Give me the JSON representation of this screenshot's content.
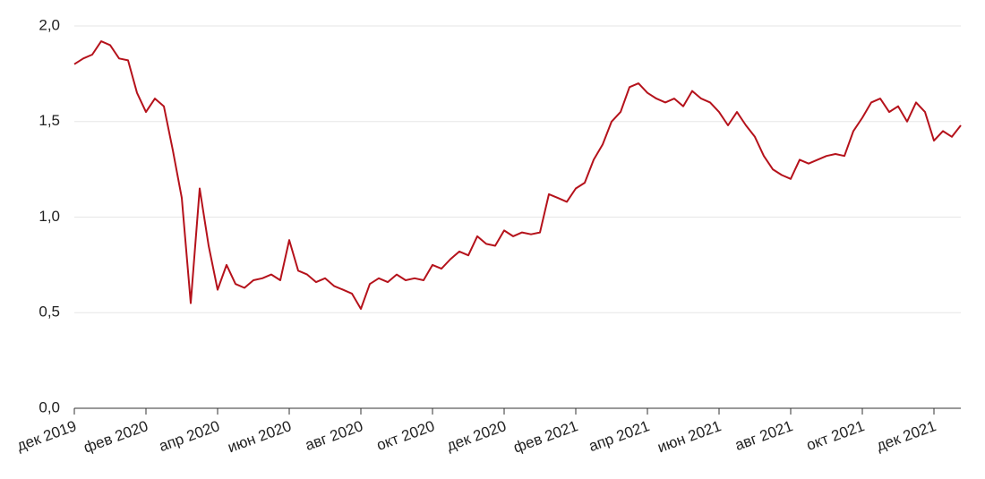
{
  "chart_data": {
    "type": "line",
    "categories": [
      "дек 2019",
      null,
      null,
      null,
      null,
      null,
      null,
      null,
      "фев 2020",
      null,
      null,
      null,
      null,
      null,
      null,
      null,
      "апр 2020",
      null,
      null,
      null,
      null,
      null,
      null,
      null,
      "июн 2020",
      null,
      null,
      null,
      null,
      null,
      null,
      null,
      "авг 2020",
      null,
      null,
      null,
      null,
      null,
      null,
      null,
      "окт 2020",
      null,
      null,
      null,
      null,
      null,
      null,
      null,
      "дек 2020",
      null,
      null,
      null,
      null,
      null,
      null,
      null,
      "фев 2021",
      null,
      null,
      null,
      null,
      null,
      null,
      null,
      "апр 2021",
      null,
      null,
      null,
      null,
      null,
      null,
      null,
      "июн 2021",
      null,
      null,
      null,
      null,
      null,
      null,
      null,
      "авг 2021",
      null,
      null,
      null,
      null,
      null,
      null,
      null,
      "окт 2021",
      null,
      null,
      null,
      null,
      null,
      null,
      null,
      "дек 2021",
      null,
      null,
      null
    ],
    "series": [
      {
        "color": "#b5121b",
        "values": [
          1.8,
          1.83,
          1.85,
          1.92,
          1.9,
          1.83,
          1.82,
          1.65,
          1.55,
          1.62,
          1.58,
          1.35,
          1.1,
          0.55,
          1.15,
          0.85,
          0.62,
          0.75,
          0.65,
          0.63,
          0.67,
          0.68,
          0.7,
          0.67,
          0.88,
          0.72,
          0.7,
          0.66,
          0.68,
          0.64,
          0.62,
          0.6,
          0.52,
          0.65,
          0.68,
          0.66,
          0.7,
          0.67,
          0.68,
          0.67,
          0.75,
          0.73,
          0.78,
          0.82,
          0.8,
          0.9,
          0.86,
          0.85,
          0.93,
          0.9,
          0.92,
          0.91,
          0.92,
          1.12,
          1.1,
          1.08,
          1.15,
          1.18,
          1.3,
          1.38,
          1.5,
          1.55,
          1.68,
          1.7,
          1.65,
          1.62,
          1.6,
          1.62,
          1.58,
          1.66,
          1.62,
          1.6,
          1.55,
          1.48,
          1.55,
          1.48,
          1.42,
          1.32,
          1.25,
          1.22,
          1.2,
          1.3,
          1.28,
          1.3,
          1.32,
          1.33,
          1.32,
          1.45,
          1.52,
          1.6,
          1.62,
          1.55,
          1.58,
          1.5,
          1.6,
          1.55,
          1.4,
          1.45,
          1.42,
          1.48
        ]
      }
    ],
    "ylim": [
      0,
      2
    ],
    "yticks": [
      {
        "value": 0,
        "label": "0,0"
      },
      {
        "value": 0.5,
        "label": "0,5"
      },
      {
        "value": 1,
        "label": "1,0"
      },
      {
        "value": 1.5,
        "label": "1,5"
      },
      {
        "value": 2,
        "label": "2,0"
      }
    ],
    "grid": true
  }
}
